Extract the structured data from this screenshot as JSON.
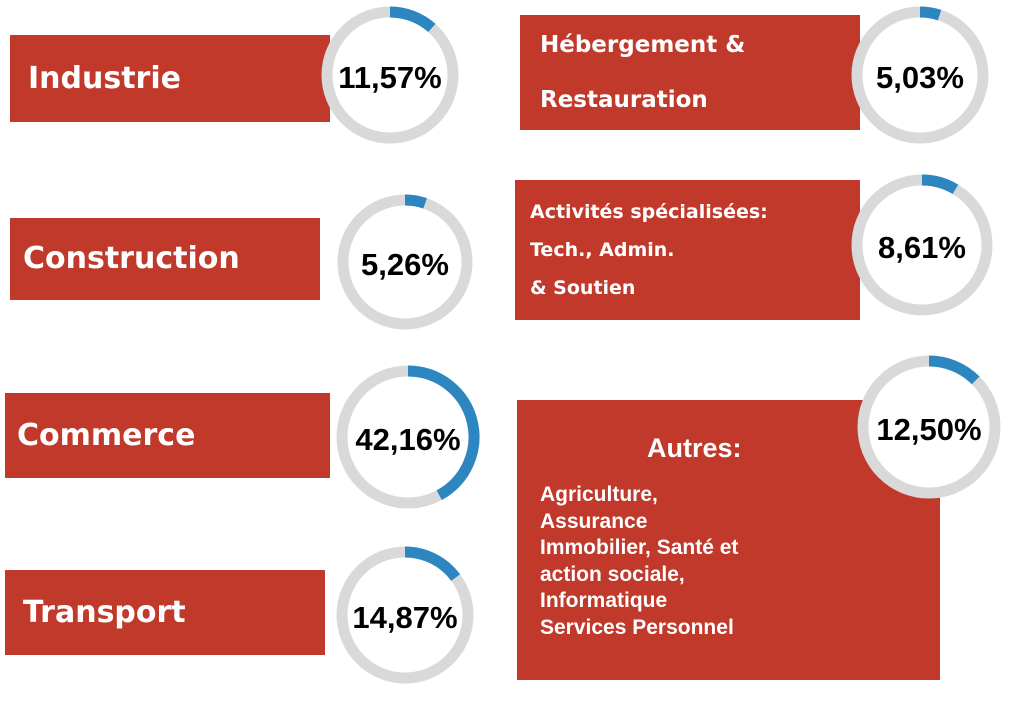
{
  "chart_data": {
    "type": "gauge",
    "categories": [
      "Industrie",
      "Construction",
      "Commerce",
      "Transport",
      "Hébergement &\nRestauration",
      "Activités spécialisées:\nTech.,  Admin.\n& Soutien",
      "Autres:"
    ],
    "values": [
      11.57,
      5.26,
      42.16,
      14.87,
      5.03,
      8.61,
      12.5
    ],
    "value_labels": [
      "11,57%",
      "5,26%",
      "42,16%",
      "14,87%",
      "5,03%",
      "8,61%",
      "12,50%"
    ],
    "annotation": "Agriculture,\nAssurance\nImmobilier, Santé  et\naction sociale,\nInformatique\nServices Personnel",
    "color": "#2e86c1",
    "track_color": "#d9d9d9",
    "box_color": "#c0392b"
  }
}
